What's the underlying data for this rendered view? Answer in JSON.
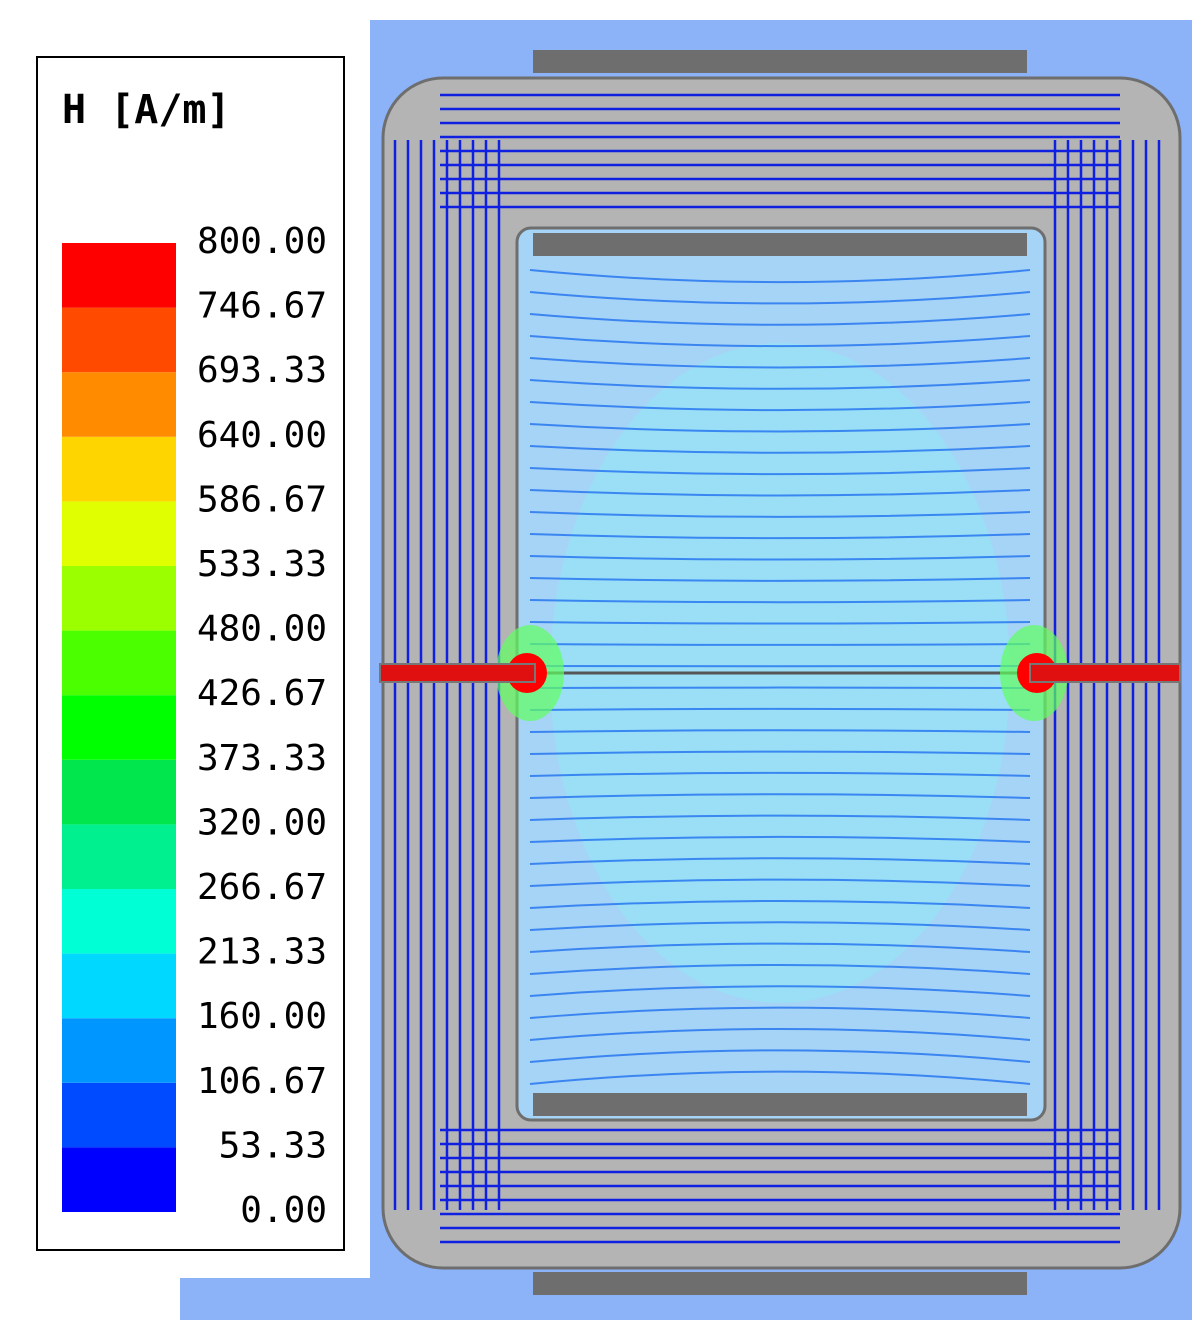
{
  "chart_data": {
    "type": "colorbar-field",
    "title": "H [A/m]",
    "clim": [
      0,
      800
    ],
    "ticks": [
      {
        "value": 0,
        "label": "0.00"
      },
      {
        "value": 53.33,
        "label": "53.33"
      },
      {
        "value": 106.67,
        "label": "106.67"
      },
      {
        "value": 160,
        "label": "160.00"
      },
      {
        "value": 213.33,
        "label": "213.33"
      },
      {
        "value": 266.67,
        "label": "266.67"
      },
      {
        "value": 320,
        "label": "320.00"
      },
      {
        "value": 373.33,
        "label": "373.33"
      },
      {
        "value": 426.67,
        "label": "426.67"
      },
      {
        "value": 480,
        "label": "480.00"
      },
      {
        "value": 533.33,
        "label": "533.33"
      },
      {
        "value": 586.67,
        "label": "586.67"
      },
      {
        "value": 640,
        "label": "640.00"
      },
      {
        "value": 693.33,
        "label": "693.33"
      },
      {
        "value": 746.67,
        "label": "746.67"
      },
      {
        "value": 800,
        "label": "800.00"
      }
    ],
    "colors": [
      "#0000ff",
      "#004aff",
      "#0096ff",
      "#00d8ff",
      "#00ffd5",
      "#00f090",
      "#00e64c",
      "#00ff00",
      "#4cff00",
      "#9cff00",
      "#e0ff00",
      "#ffd500",
      "#ff8c00",
      "#ff4a00",
      "#ff0000"
    ]
  }
}
